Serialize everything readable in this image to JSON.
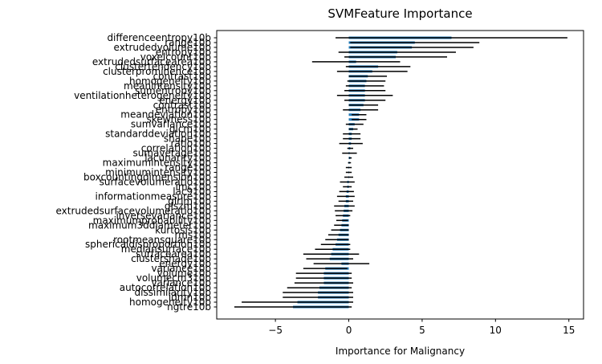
{
  "chart_data": {
    "type": "bar",
    "orientation": "horizontal",
    "title": "SVMFeature Importance",
    "xlabel": "Importance for Malignancy",
    "ylabel": "",
    "xlim": [
      -9,
      16
    ],
    "xticks": [
      -5,
      0,
      5,
      10,
      15
    ],
    "xtick_labels": [
      "−5",
      "0",
      "5",
      "10",
      "15"
    ],
    "grid": false,
    "legend": "none",
    "bar_color": "#1f77b4",
    "error_color": "#000000",
    "categories": [
      "differenceentropy10b",
      "range10b",
      "extrudedvolume10b",
      "entropy10b",
      "voxelcount10b",
      "extrudedsurfacearea10b",
      "clustertendency10b",
      "clusterprominence10b",
      "contrast10b",
      "homogeneity10b",
      "meanintensity10b",
      "sumentropy10b",
      "ventilationheterogeneity10b",
      "energy10b",
      "contrast10b",
      "entropy10b",
      "meandeviation10b",
      "skewness10b",
      "sumvariance10b",
      "glcm10b",
      "standarddeviation10b",
      "shape10b",
      "ratio10b",
      "correlation10b",
      "sumaverage10b",
      "lacunarity10b",
      "maximumintensity10b",
      "range10b",
      "minimumintensity10b",
      "boxcountingdimension10b",
      "surfacevolumeratio10b",
      "imc10b",
      "lac910b",
      "informationmeasure10b",
      "glrlm10b",
      "glszm10b",
      "extrudedsurfacevolumeratio10b",
      "inversevariance10b",
      "maximumprobability10b",
      "maximum3ddiameter10b",
      "kurtosis10b",
      "rms10b",
      "rootmeansquare10b",
      "sphericaldisproportion10b",
      "mediansurface10b",
      "surfacearea10b",
      "clustershade10b",
      "energy10b",
      "variance10b",
      "volume10b",
      "volumecm310b",
      "variance10b",
      "autocorrelation10b",
      "dissimilarity10b",
      "idmn10b",
      "homogeneity10b",
      "ngtre10b"
    ],
    "values": [
      7.0,
      4.5,
      4.3,
      3.3,
      3.2,
      0.5,
      2.0,
      1.6,
      1.3,
      1.2,
      1.1,
      1.1,
      1.1,
      1.1,
      1.0,
      0.8,
      0.7,
      0.7,
      0.4,
      0.3,
      0.2,
      0.2,
      0.15,
      0.1,
      0.05,
      0.1,
      0.05,
      0.0,
      0.0,
      0.0,
      -0.1,
      -0.1,
      -0.15,
      -0.2,
      -0.2,
      -0.3,
      -0.35,
      -0.4,
      -0.45,
      -0.5,
      -0.6,
      -0.7,
      -0.8,
      -0.9,
      -1.1,
      -1.2,
      -1.3,
      -0.5,
      -1.6,
      -1.7,
      -1.7,
      -1.7,
      -2.0,
      -2.1,
      -2.1,
      -3.5,
      -3.8
    ],
    "errors": [
      7.9,
      4.4,
      4.2,
      4.0,
      3.5,
      3.0,
      2.2,
      2.4,
      1.3,
      1.3,
      1.3,
      1.4,
      1.9,
      1.4,
      1.0,
      1.2,
      0.5,
      0.5,
      0.6,
      0.3,
      0.6,
      0.6,
      0.8,
      0.2,
      0.5,
      0.1,
      0.1,
      0.2,
      0.2,
      0.3,
      0.5,
      0.3,
      0.5,
      0.6,
      0.5,
      0.7,
      0.6,
      0.5,
      0.4,
      0.5,
      0.6,
      0.7,
      0.8,
      1.0,
      1.2,
      1.9,
      1.6,
      1.9,
      1.5,
      1.9,
      1.9,
      2.0,
      2.2,
      2.4,
      2.4,
      3.8,
      4.0
    ]
  }
}
